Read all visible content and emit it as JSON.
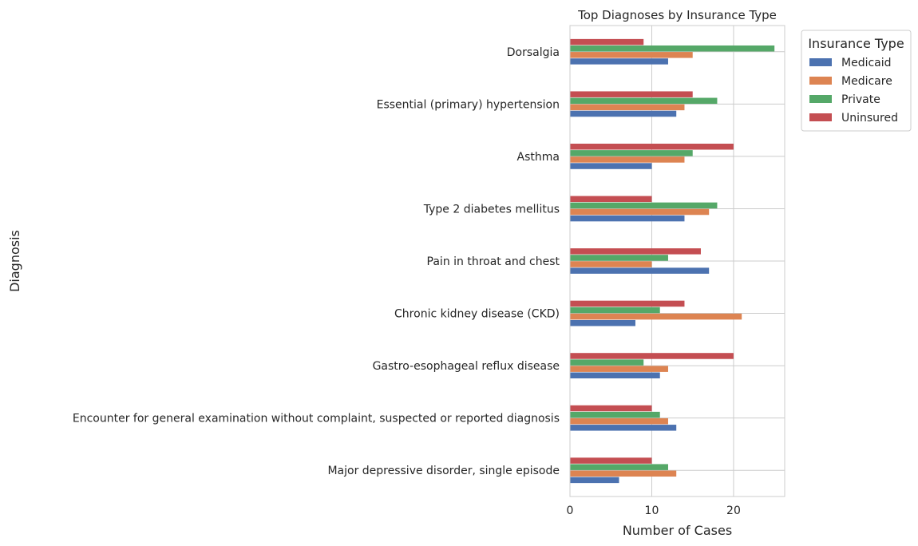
{
  "chart_data": {
    "type": "bar",
    "orientation": "horizontal",
    "title": "Top Diagnoses by Insurance Type",
    "xlabel": "Number of Cases",
    "ylabel": "Diagnosis",
    "xlim": [
      0,
      26.25
    ],
    "xticks": [
      0,
      10,
      20
    ],
    "grid": true,
    "legend": {
      "title": "Insurance Type",
      "placement": "upper-right-outside"
    },
    "categories": [
      "Major depressive disorder, single episode",
      "Encounter for general examination without complaint, suspected or reported diagnosis",
      "Gastro-esophageal reflux disease",
      "Chronic kidney disease (CKD)",
      "Pain in throat and chest",
      "Type 2 diabetes mellitus",
      "Asthma",
      "Essential (primary) hypertension",
      "Dorsalgia"
    ],
    "series": [
      {
        "name": "Medicaid",
        "color": "#4c72b0",
        "values": [
          6,
          13,
          11,
          8,
          17,
          14,
          10,
          13,
          12
        ]
      },
      {
        "name": "Medicare",
        "color": "#dd8452",
        "values": [
          13,
          12,
          12,
          21,
          10,
          17,
          14,
          14,
          15
        ]
      },
      {
        "name": "Private",
        "color": "#55a868",
        "values": [
          12,
          11,
          9,
          11,
          12,
          18,
          15,
          18,
          25
        ]
      },
      {
        "name": "Uninsured",
        "color": "#c44e52",
        "values": [
          10,
          10,
          20,
          14,
          16,
          10,
          20,
          15,
          9
        ]
      }
    ]
  }
}
